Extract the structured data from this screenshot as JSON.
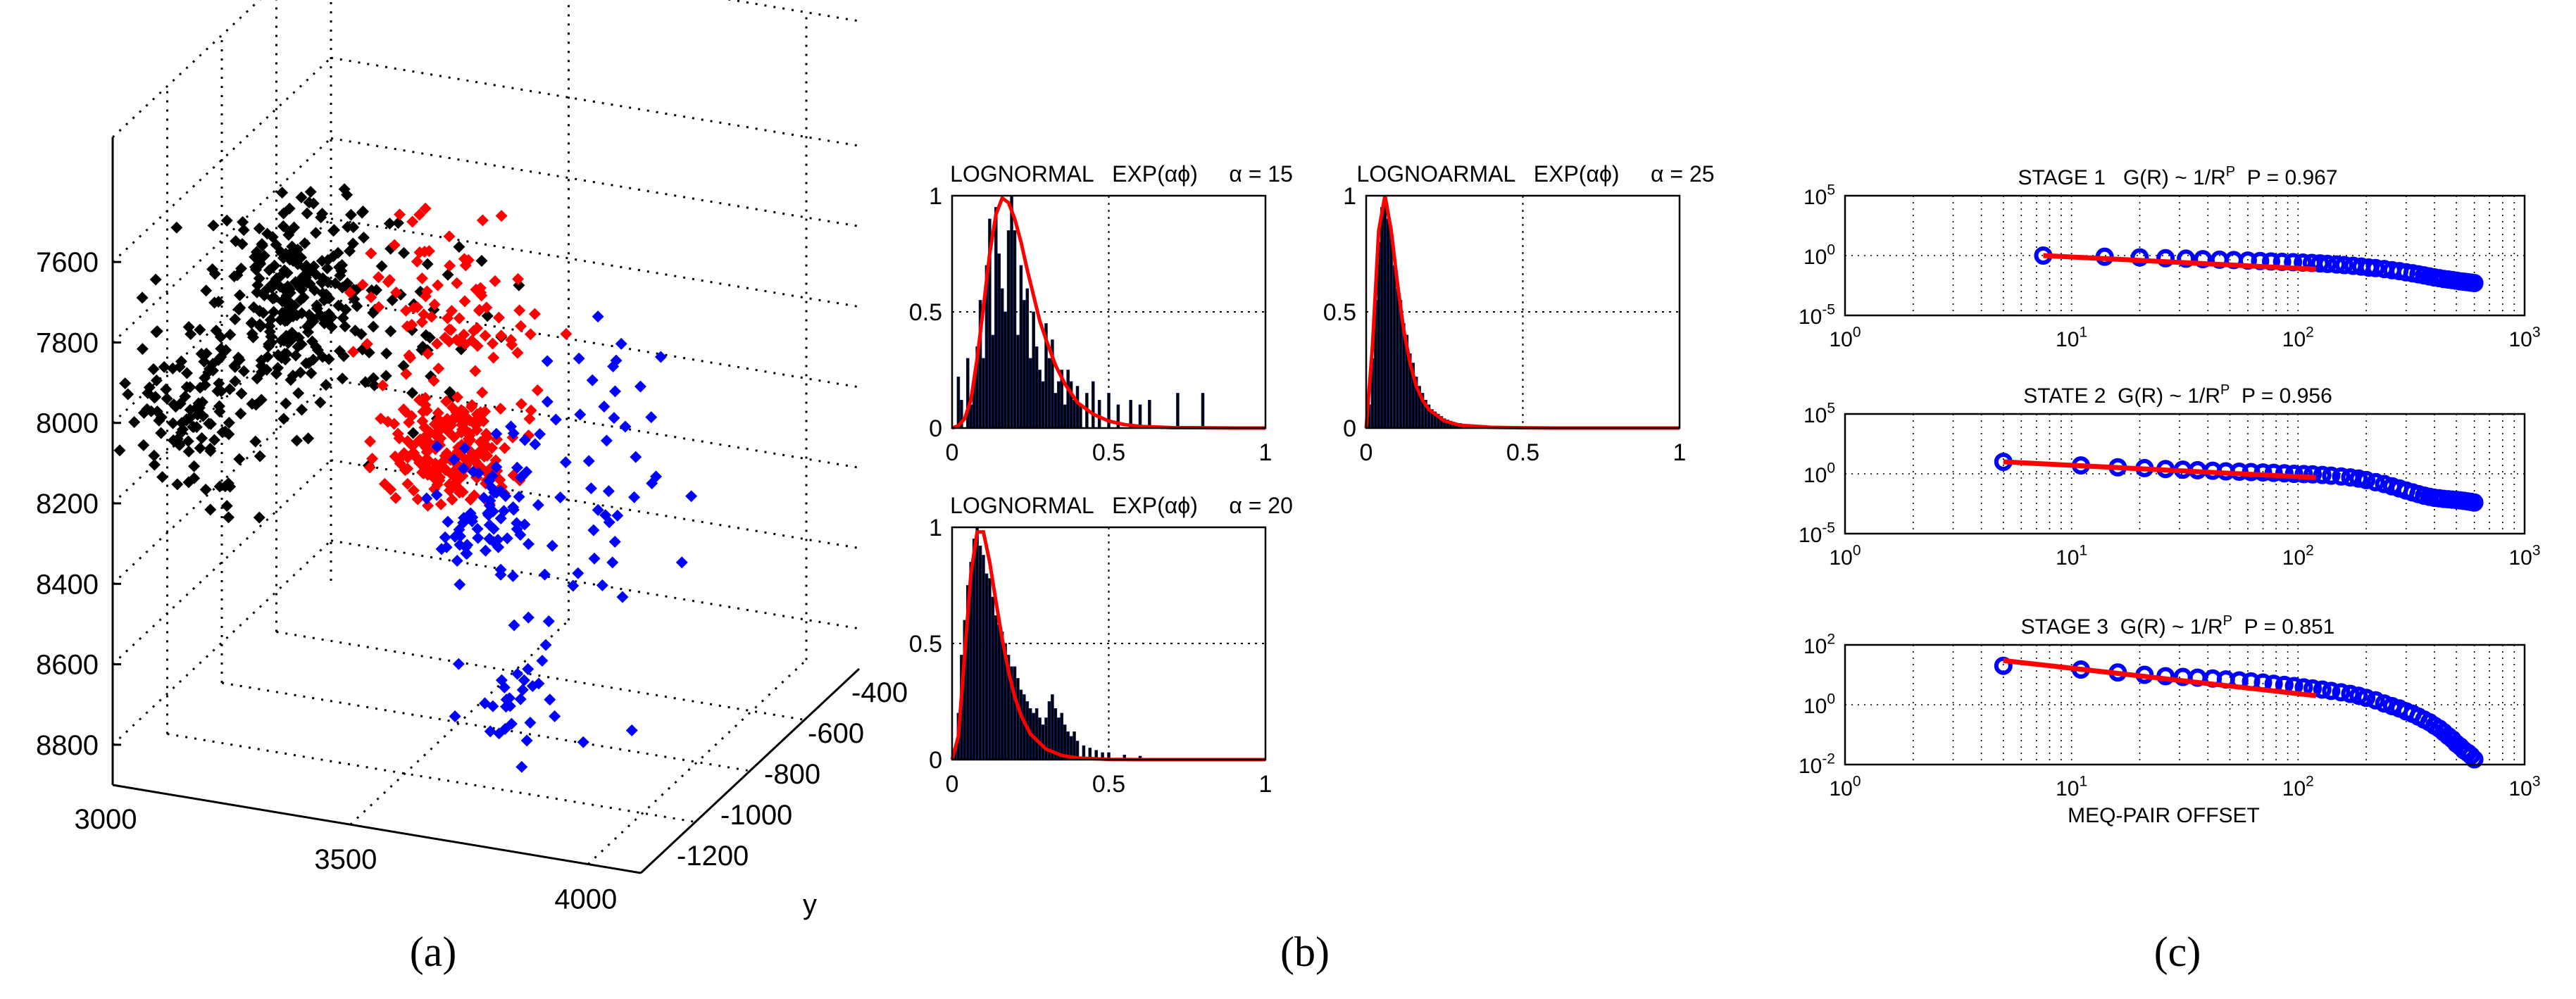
{
  "panel_labels": [
    "(a)",
    "(b)",
    "(c)"
  ],
  "panel_a": {
    "type": "scatter3d",
    "z_ticks": [
      "7600",
      "7800",
      "8000",
      "8200",
      "8400",
      "8600",
      "8800"
    ],
    "x_ticks": [
      "3000",
      "3500",
      "4000"
    ],
    "y_ticks": [
      "-400",
      "-600",
      "-800",
      "-1000",
      "-1200"
    ],
    "y_axis_letter": "y",
    "zlim": [
      7500,
      8900
    ],
    "xlim": [
      3000,
      4100
    ],
    "ylim": [
      -1300,
      -300
    ],
    "series_colors": [
      "#000000",
      "#ff0000",
      "#0000ff"
    ],
    "grid": true
  },
  "chart_data": [
    {
      "type": "bar",
      "title": "LOGNORMAL   EXP(αϕ)     α = 15",
      "xlim": [
        0,
        1
      ],
      "ylim": [
        0,
        1
      ],
      "x_ticks": [
        "0",
        "0.5",
        "1"
      ],
      "y_ticks": [
        "0",
        "0.5",
        "1"
      ],
      "grid": true,
      "series": [
        {
          "kind": "histogram",
          "color": "#000000",
          "x": [
            0.02,
            0.03,
            0.05,
            0.06,
            0.07,
            0.08,
            0.09,
            0.1,
            0.11,
            0.12,
            0.13,
            0.14,
            0.15,
            0.16,
            0.17,
            0.18,
            0.19,
            0.2,
            0.21,
            0.22,
            0.23,
            0.24,
            0.25,
            0.26,
            0.27,
            0.28,
            0.29,
            0.3,
            0.31,
            0.32,
            0.33,
            0.34,
            0.35,
            0.36,
            0.37,
            0.38,
            0.39,
            0.4,
            0.41,
            0.43,
            0.45,
            0.47,
            0.5,
            0.53,
            0.57,
            0.6,
            0.63,
            0.72,
            0.8
          ],
          "values": [
            0.22,
            0.12,
            0.3,
            0.1,
            0.2,
            0.35,
            0.55,
            0.3,
            0.7,
            0.9,
            0.4,
            0.95,
            0.75,
            0.6,
            0.5,
            0.85,
            1.0,
            0.85,
            0.4,
            0.7,
            0.55,
            0.6,
            0.3,
            0.5,
            0.35,
            0.25,
            0.2,
            0.45,
            0.3,
            0.38,
            0.15,
            0.2,
            0.25,
            0.1,
            0.25,
            0.2,
            0.12,
            0.18,
            0.1,
            0.15,
            0.2,
            0.12,
            0.15,
            0.1,
            0.12,
            0.1,
            0.12,
            0.15,
            0.15
          ]
        },
        {
          "kind": "curve",
          "color": "#ff0000",
          "x": [
            0,
            0.02,
            0.04,
            0.06,
            0.08,
            0.1,
            0.12,
            0.14,
            0.16,
            0.18,
            0.2,
            0.22,
            0.24,
            0.26,
            0.28,
            0.3,
            0.33,
            0.36,
            0.4,
            0.45,
            0.5,
            0.55,
            0.6,
            0.7,
            0.8,
            0.9,
            1.0
          ],
          "values": [
            0,
            0.01,
            0.04,
            0.12,
            0.3,
            0.52,
            0.75,
            0.92,
            0.99,
            0.97,
            0.9,
            0.8,
            0.68,
            0.57,
            0.46,
            0.38,
            0.27,
            0.19,
            0.11,
            0.06,
            0.03,
            0.015,
            0.007,
            0.002,
            0.001,
            0,
            0
          ]
        }
      ]
    },
    {
      "type": "bar",
      "title": "LOGNOARMAL   EXP(αϕ)     α = 25",
      "xlim": [
        0,
        1
      ],
      "ylim": [
        0,
        1
      ],
      "x_ticks": [
        "0",
        "0.5",
        "1"
      ],
      "y_ticks": [
        "0",
        "0.5",
        "1"
      ],
      "grid": true,
      "series": [
        {
          "kind": "histogram",
          "color": "#000000",
          "x": [
            0.01,
            0.02,
            0.03,
            0.04,
            0.05,
            0.06,
            0.07,
            0.08,
            0.09,
            0.1,
            0.11,
            0.12,
            0.13,
            0.14,
            0.15,
            0.16,
            0.17,
            0.18,
            0.19,
            0.2,
            0.21,
            0.22,
            0.23,
            0.24,
            0.25,
            0.26,
            0.27,
            0.28,
            0.29,
            0.3,
            0.32,
            0.34,
            0.36,
            0.38,
            0.4
          ],
          "values": [
            0.1,
            0.3,
            0.55,
            0.8,
            0.95,
            1.0,
            0.9,
            0.85,
            0.7,
            0.6,
            0.55,
            0.45,
            0.4,
            0.32,
            0.28,
            0.22,
            0.18,
            0.15,
            0.12,
            0.1,
            0.08,
            0.07,
            0.06,
            0.05,
            0.04,
            0.035,
            0.03,
            0.025,
            0.02,
            0.02,
            0.015,
            0.01,
            0.01,
            0.01,
            0.008
          ]
        },
        {
          "kind": "curve",
          "color": "#ff0000",
          "x": [
            0,
            0.02,
            0.04,
            0.06,
            0.08,
            0.1,
            0.12,
            0.14,
            0.16,
            0.18,
            0.2,
            0.25,
            0.3,
            0.4,
            0.5,
            0.6,
            0.8,
            1.0
          ],
          "values": [
            0,
            0.35,
            0.85,
            1.0,
            0.85,
            0.62,
            0.42,
            0.28,
            0.18,
            0.12,
            0.08,
            0.03,
            0.012,
            0.003,
            0.001,
            0,
            0,
            0
          ]
        }
      ]
    },
    {
      "type": "bar",
      "title": "LOGNORMAL   EXP(αϕ)     α = 20",
      "xlim": [
        0,
        1
      ],
      "ylim": [
        0,
        1
      ],
      "x_ticks": [
        "0",
        "0.5",
        "1"
      ],
      "y_ticks": [
        "0",
        "0.5",
        "1"
      ],
      "grid": true,
      "series": [
        {
          "kind": "histogram",
          "color": "#000000",
          "x": [
            0.01,
            0.02,
            0.03,
            0.04,
            0.05,
            0.06,
            0.07,
            0.08,
            0.09,
            0.1,
            0.11,
            0.12,
            0.13,
            0.14,
            0.15,
            0.16,
            0.17,
            0.18,
            0.19,
            0.2,
            0.21,
            0.22,
            0.23,
            0.24,
            0.25,
            0.26,
            0.27,
            0.28,
            0.29,
            0.3,
            0.31,
            0.32,
            0.33,
            0.34,
            0.35,
            0.36,
            0.37,
            0.38,
            0.39,
            0.4,
            0.42,
            0.44,
            0.46,
            0.48,
            0.5,
            0.55,
            0.6
          ],
          "values": [
            0.05,
            0.2,
            0.45,
            0.6,
            0.75,
            0.85,
            0.95,
            1.0,
            0.92,
            0.88,
            0.8,
            0.78,
            0.7,
            0.62,
            0.58,
            0.55,
            0.5,
            0.45,
            0.4,
            0.4,
            0.35,
            0.3,
            0.28,
            0.25,
            0.22,
            0.2,
            0.22,
            0.18,
            0.15,
            0.18,
            0.25,
            0.28,
            0.22,
            0.18,
            0.2,
            0.15,
            0.12,
            0.1,
            0.12,
            0.08,
            0.06,
            0.05,
            0.04,
            0.03,
            0.03,
            0.02,
            0.015
          ]
        },
        {
          "kind": "curve",
          "color": "#ff0000",
          "x": [
            0,
            0.02,
            0.04,
            0.06,
            0.08,
            0.1,
            0.12,
            0.14,
            0.16,
            0.18,
            0.2,
            0.22,
            0.25,
            0.3,
            0.35,
            0.4,
            0.5,
            0.6,
            0.8,
            1.0
          ],
          "values": [
            0,
            0.1,
            0.45,
            0.8,
            0.98,
            0.98,
            0.85,
            0.68,
            0.52,
            0.38,
            0.27,
            0.19,
            0.11,
            0.045,
            0.018,
            0.007,
            0.001,
            0,
            0,
            0
          ]
        }
      ]
    },
    {
      "type": "scatter",
      "title": "STAGE 1   G(R) ~ 1/R",
      "title_sup": "P",
      "title_tail": "  P = 0.967",
      "xscale": "log",
      "yscale": "log",
      "xlim": [
        1,
        1000
      ],
      "ylim": [
        1e-05,
        100000
      ],
      "x_ticks": [
        {
          "base": "10",
          "exp": "0"
        },
        {
          "base": "10",
          "exp": "1"
        },
        {
          "base": "10",
          "exp": "2"
        },
        {
          "base": "10",
          "exp": "3"
        }
      ],
      "y_ticks": [
        {
          "base": "10",
          "exp": "5"
        },
        {
          "base": "10",
          "exp": "0"
        },
        {
          "base": "10",
          "exp": "-5"
        }
      ],
      "grid": true,
      "series": [
        {
          "kind": "points",
          "color": "#0000ff",
          "x": [
            7.5,
            14,
            20,
            26,
            32,
            38,
            45,
            52,
            60,
            68,
            76,
            85,
            95,
            105,
            115,
            125,
            135,
            148,
            160,
            175,
            190,
            205,
            220,
            240,
            260,
            280,
            300,
            320,
            340,
            360,
            380,
            400,
            420,
            440,
            460,
            480,
            500,
            520,
            540,
            560,
            580,
            600
          ],
          "values": [
            1.0,
            0.8,
            0.7,
            0.6,
            0.55,
            0.5,
            0.45,
            0.42,
            0.38,
            0.35,
            0.32,
            0.3,
            0.28,
            0.26,
            0.24,
            0.22,
            0.2,
            0.18,
            0.16,
            0.14,
            0.12,
            0.1,
            0.09,
            0.075,
            0.06,
            0.05,
            0.04,
            0.033,
            0.027,
            0.022,
            0.018,
            0.015,
            0.013,
            0.011,
            0.01,
            0.009,
            0.008,
            0.007,
            0.0065,
            0.006,
            0.0055,
            0.005
          ]
        },
        {
          "kind": "fit",
          "color": "#ff0000",
          "x": [
            7.5,
            120
          ],
          "values": [
            1.0,
            0.072
          ]
        }
      ]
    },
    {
      "type": "scatter",
      "title": "STATE 2  G(R) ~ 1/R",
      "title_sup": "P",
      "title_tail": "  P = 0.956",
      "xscale": "log",
      "yscale": "log",
      "xlim": [
        1,
        1000
      ],
      "ylim": [
        1e-05,
        100000
      ],
      "x_ticks": [
        {
          "base": "10",
          "exp": "0"
        },
        {
          "base": "10",
          "exp": "1"
        },
        {
          "base": "10",
          "exp": "2"
        },
        {
          "base": "10",
          "exp": "3"
        }
      ],
      "y_ticks": [
        {
          "base": "10",
          "exp": "5"
        },
        {
          "base": "10",
          "exp": "0"
        },
        {
          "base": "10",
          "exp": "-5"
        }
      ],
      "grid": true,
      "series": [
        {
          "kind": "points",
          "color": "#0000ff",
          "x": [
            5,
            11,
            16,
            21,
            26,
            31,
            36,
            42,
            48,
            55,
            62,
            70,
            78,
            87,
            96,
            106,
            116,
            128,
            140,
            155,
            170,
            185,
            200,
            220,
            240,
            260,
            280,
            300,
            320,
            340,
            360,
            380,
            400,
            420,
            440,
            460,
            480,
            500,
            520,
            540,
            560,
            580,
            600
          ],
          "values": [
            10,
            5,
            3.5,
            3,
            2.5,
            2.2,
            2,
            1.8,
            1.6,
            1.5,
            1.4,
            1.3,
            1.2,
            1.1,
            1.0,
            0.95,
            0.9,
            0.8,
            0.7,
            0.6,
            0.5,
            0.4,
            0.3,
            0.2,
            0.14,
            0.09,
            0.06,
            0.04,
            0.028,
            0.02,
            0.015,
            0.012,
            0.01,
            0.009,
            0.008,
            0.0075,
            0.007,
            0.0065,
            0.006,
            0.0055,
            0.005,
            0.0045,
            0.004
          ]
        },
        {
          "kind": "fit",
          "color": "#ff0000",
          "x": [
            5,
            120
          ],
          "values": [
            10,
            0.48
          ]
        }
      ]
    },
    {
      "type": "scatter",
      "title": "STAGE 3  G(R) ~ 1/R",
      "title_sup": "P",
      "title_tail": "  P = 0.851",
      "xscale": "log",
      "yscale": "log",
      "xlim": [
        1,
        1000
      ],
      "ylim": [
        0.01,
        100
      ],
      "x_ticks": [
        {
          "base": "10",
          "exp": "0"
        },
        {
          "base": "10",
          "exp": "1"
        },
        {
          "base": "10",
          "exp": "2"
        },
        {
          "base": "10",
          "exp": "3"
        }
      ],
      "y_ticks": [
        {
          "base": "10",
          "exp": "2"
        },
        {
          "base": "10",
          "exp": "0"
        },
        {
          "base": "10",
          "exp": "-2"
        }
      ],
      "xlabel": "MEQ-PAIR OFFSET",
      "grid": true,
      "series": [
        {
          "kind": "points",
          "color": "#0000ff",
          "x": [
            5,
            11,
            16,
            21,
            26,
            31,
            36,
            42,
            48,
            55,
            62,
            70,
            78,
            87,
            96,
            106,
            116,
            128,
            140,
            155,
            170,
            185,
            200,
            220,
            240,
            260,
            280,
            300,
            320,
            340,
            360,
            380,
            400,
            420,
            440,
            460,
            480,
            500,
            520,
            540,
            560,
            580,
            600
          ],
          "values": [
            20,
            15,
            12,
            10,
            9,
            8.5,
            8,
            7.5,
            7,
            6.5,
            6,
            5.5,
            5,
            4.6,
            4.2,
            3.8,
            3.5,
            3.2,
            2.9,
            2.6,
            2.3,
            2.0,
            1.7,
            1.4,
            1.1,
            0.9,
            0.75,
            0.6,
            0.5,
            0.4,
            0.32,
            0.26,
            0.2,
            0.16,
            0.12,
            0.09,
            0.07,
            0.05,
            0.04,
            0.03,
            0.025,
            0.02,
            0.015
          ]
        },
        {
          "kind": "fit",
          "color": "#ff0000",
          "x": [
            5,
            120
          ],
          "values": [
            30,
            2.0
          ]
        }
      ]
    }
  ]
}
